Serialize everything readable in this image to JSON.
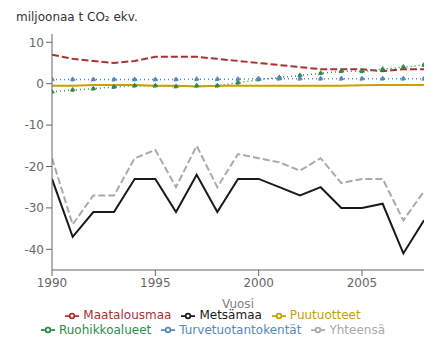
{
  "chart_data": {
    "type": "line",
    "xlabel": "Vuosi",
    "ylabel": "miljoonaa t  CO₂ ekv.",
    "x": [
      1990,
      1991,
      1992,
      1993,
      1994,
      1995,
      1996,
      1997,
      1998,
      1999,
      2000,
      2001,
      2002,
      2003,
      2004,
      2005,
      2006,
      2007,
      2008
    ],
    "xlim": [
      1990,
      2008
    ],
    "xticks": [
      1990,
      1995,
      2000,
      2005
    ],
    "ylim": [
      -45,
      12
    ],
    "yticks": [
      -40,
      -30,
      -20,
      -10,
      0,
      10
    ],
    "grid": false,
    "legend": "bottom",
    "series": [
      {
        "name": "Metsämaa",
        "color": "#1a1a1a",
        "line_style": "solid",
        "values": [
          -23,
          -37,
          -31,
          -31,
          -23,
          -23,
          -31,
          -22,
          -31,
          -23,
          -23,
          -25,
          -27,
          -25,
          -30,
          -30,
          -29,
          -41,
          -33
        ]
      },
      {
        "name": "Maatalousmaa",
        "color": "#a83232",
        "line_style": "dashed",
        "values": [
          7.0,
          6.0,
          5.5,
          5.0,
          5.5,
          6.5,
          6.5,
          6.5,
          6.0,
          5.5,
          5.0,
          4.5,
          4.0,
          3.5,
          3.5,
          3.5,
          3.0,
          3.5,
          3.5
        ]
      },
      {
        "name": "Ruohikkoalueet",
        "color": "#2e8b4a",
        "line_style": "dotted",
        "marker": "dot",
        "values": [
          -2.0,
          -1.5,
          -1.2,
          -0.8,
          -0.5,
          -0.5,
          -0.7,
          -0.5,
          -0.5,
          0.2,
          1.0,
          1.5,
          2.0,
          2.5,
          3.0,
          3.0,
          3.5,
          4.0,
          4.5
        ]
      },
      {
        "name": "Turvetuotantokentät",
        "color": "#5588bb",
        "line_style": "dotted",
        "marker": "dot",
        "values": [
          1.0,
          1.0,
          1.0,
          1.0,
          1.0,
          1.0,
          1.0,
          1.1,
          1.1,
          1.1,
          1.2,
          1.2,
          1.2,
          1.2,
          1.2,
          1.2,
          1.2,
          1.2,
          1.2
        ]
      },
      {
        "name": "Puutuotteet",
        "color": "#c8a000",
        "line_style": "solid",
        "values": [
          -0.5,
          -0.5,
          -0.3,
          -0.3,
          -0.3,
          -0.5,
          -0.5,
          -0.7,
          -0.5,
          -0.5,
          -0.5,
          -0.5,
          -0.5,
          -0.5,
          -0.5,
          -0.4,
          -0.3,
          -0.3,
          -0.3
        ]
      },
      {
        "name": "Yhteensä",
        "color": "#aaaaaa",
        "line_style": "dashed",
        "values": [
          -18,
          -34,
          -27,
          -27,
          -18,
          -16,
          -25,
          -15,
          -25,
          -17,
          -18,
          -19,
          -21,
          -18,
          -24,
          -23,
          -23,
          -33,
          -26
        ]
      }
    ]
  }
}
